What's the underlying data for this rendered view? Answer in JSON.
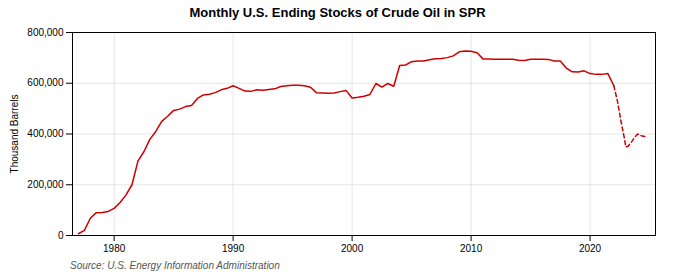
{
  "chart_data": {
    "type": "line",
    "title": "Monthly U.S. Ending Stocks of Crude Oil in SPR",
    "ylabel": "Thousand Barrels",
    "source": "Source: U.S. Energy Information Administration",
    "xlim": [
      1976.5,
      2025.5
    ],
    "xticks": [
      1980,
      1990,
      2000,
      2010,
      2020
    ],
    "ylim": [
      0,
      800000
    ],
    "yticks": [
      0,
      {
        "value": 200000,
        "label": "200,000"
      },
      {
        "value": 400000,
        "label": "400,000"
      },
      {
        "value": 600000,
        "label": "600,000"
      },
      {
        "value": 800000,
        "label": "800,000"
      }
    ],
    "grid": true,
    "series": [
      {
        "color": "#cc0000",
        "line_style": "solid",
        "x": [
          1977.0,
          1977.5,
          1978.0,
          1978.5,
          1979.0,
          1979.5,
          1980.0,
          1980.5,
          1981.0,
          1981.5,
          1982.0,
          1982.5,
          1983.0,
          1983.5,
          1984.0,
          1984.5,
          1985.0,
          1985.5,
          1986.0,
          1986.5,
          1987.0,
          1987.5,
          1988.0,
          1988.5,
          1989.0,
          1989.5,
          1990.0,
          1990.5,
          1991.0,
          1991.5,
          1992.0,
          1992.5,
          1993.0,
          1993.5,
          1994.0,
          1994.5,
          1995.0,
          1995.5,
          1996.0,
          1996.5,
          1997.0,
          1997.5,
          1998.0,
          1998.5,
          1999.0,
          1999.5,
          2000.0,
          2000.5,
          2001.0,
          2001.5,
          2002.0,
          2002.5,
          2003.0,
          2003.5,
          2004.0,
          2004.5,
          2005.0,
          2005.5,
          2006.0,
          2006.5,
          2007.0,
          2007.5,
          2008.0,
          2008.5,
          2009.0,
          2009.5,
          2010.0,
          2010.5,
          2011.0,
          2011.5,
          2012.0,
          2012.5,
          2013.0,
          2013.5,
          2014.0,
          2014.5,
          2015.0,
          2015.5,
          2016.0,
          2016.5,
          2017.0,
          2017.5,
          2018.0,
          2018.5,
          2019.0,
          2019.5,
          2020.0,
          2020.5,
          2021.0,
          2021.5,
          2022.0
        ],
        "values": [
          7000,
          20000,
          68000,
          90000,
          91000,
          95000,
          107000,
          130000,
          160000,
          200000,
          293000,
          330000,
          379000,
          410000,
          450000,
          470000,
          493000,
          498000,
          508000,
          512000,
          540000,
          554000,
          557000,
          563000,
          574000,
          580000,
          590000,
          580000,
          569000,
          568000,
          574000,
          572000,
          575000,
          578000,
          587000,
          590000,
          592000,
          592000,
          590000,
          584000,
          563000,
          562000,
          561000,
          562000,
          567000,
          571000,
          542000,
          545000,
          549000,
          556000,
          599000,
          585000,
          599000,
          588000,
          670000,
          672000,
          685000,
          688000,
          688000,
          693000,
          697000,
          698000,
          701000,
          708000,
          724000,
          727000,
          726000,
          720000,
          696000,
          696000,
          695000,
          695000,
          695000,
          695000,
          691000,
          690000,
          695000,
          695000,
          695000,
          694000,
          688000,
          688000,
          660000,
          645000,
          644000,
          649000,
          638000,
          635000,
          635000,
          638000,
          590000
        ]
      },
      {
        "color": "#cc0000",
        "line_style": "dashed",
        "x": [
          2022.0,
          2022.3,
          2022.6,
          2022.9,
          2023.0,
          2023.2,
          2023.5,
          2023.8,
          2024.0,
          2024.3,
          2024.6
        ],
        "values": [
          590000,
          530000,
          450000,
          380000,
          349000,
          352000,
          370000,
          390000,
          400000,
          393000,
          390000
        ]
      }
    ]
  }
}
